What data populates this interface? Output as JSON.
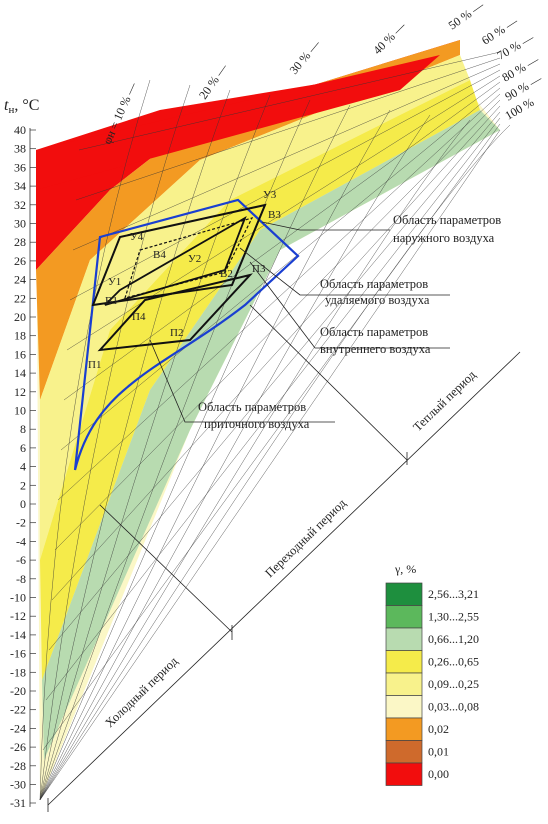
{
  "axis": {
    "y_title_main": "t",
    "y_title_sub": "н",
    "y_title_unit": ", °C",
    "ticks": [
      "40",
      "38",
      "36",
      "34",
      "32",
      "30",
      "28",
      "26",
      "24",
      "22",
      "20",
      "18",
      "16",
      "14",
      "12",
      "10",
      "8",
      "6",
      "4",
      "2",
      "0",
      "-2",
      "-4",
      "-6",
      "-8",
      "-10",
      "-12",
      "-14",
      "-16",
      "-18",
      "-20",
      "-22",
      "-24",
      "-26",
      "-28",
      "-30",
      "-31"
    ]
  },
  "rh_labels": [
    {
      "text": "φн = 10 % —"
    },
    {
      "text": "20 % —"
    },
    {
      "text": "30 % —"
    },
    {
      "text": "40 % —"
    },
    {
      "text": "50 % —"
    },
    {
      "text": "60 % —"
    },
    {
      "text": "70 % —"
    },
    {
      "text": "80 % —"
    },
    {
      "text": "90 % —"
    },
    {
      "text": "100 %"
    }
  ],
  "annotations": {
    "outdoor": [
      "Область параметров",
      "наружного воздуха"
    ],
    "exhaust": [
      "Область параметров",
      "удаляемого воздуха"
    ],
    "internal": [
      "Область параметров",
      "внутреннего воздуха"
    ],
    "supply": [
      "Область параметров",
      "приточного воздуха"
    ]
  },
  "periods": {
    "cold": "Холодный период",
    "transition": "Переходный период",
    "warm": "Теплый период"
  },
  "points": {
    "U1": "У1",
    "U2": "У2",
    "U3": "У3",
    "U4": "У4",
    "B1": "В1",
    "B2": "В2",
    "B3": "В3",
    "B4": "В4",
    "P1": "П1",
    "P2": "П2",
    "P3": "П3",
    "P4": "П4"
  },
  "legend": {
    "title": "γ, %",
    "items": [
      {
        "label": "2,56...3,21",
        "color": "#1e8f3e"
      },
      {
        "label": "1,30...2,55",
        "color": "#5cb85c"
      },
      {
        "label": "0,66...1,20",
        "color": "#b8dbb0"
      },
      {
        "label": "0,26...0,65",
        "color": "#f5eb4a"
      },
      {
        "label": "0,09...0,25",
        "color": "#f8f28c"
      },
      {
        "label": "0,03...0,08",
        "color": "#fbf7c6"
      },
      {
        "label": "0,02",
        "color": "#f39a22"
      },
      {
        "label": "0,01",
        "color": "#cf6a2c"
      },
      {
        "label": "0,00",
        "color": "#f20d0d"
      }
    ]
  }
}
